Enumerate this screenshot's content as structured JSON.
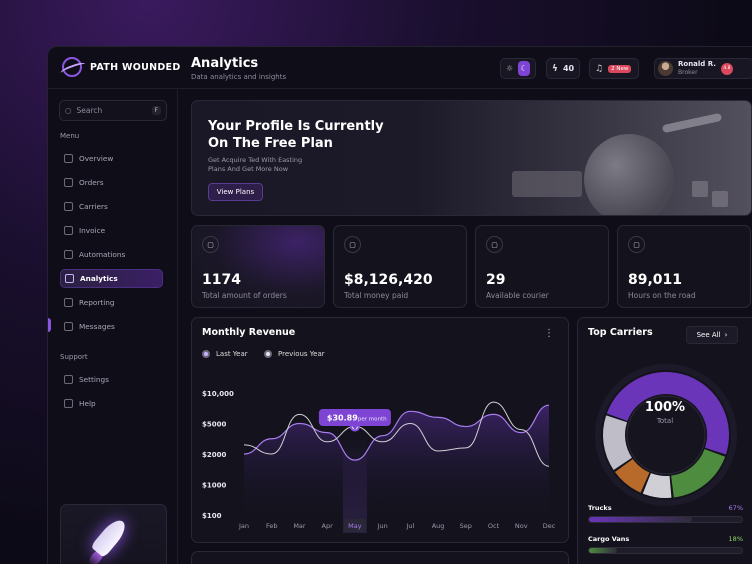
{
  "brand": {
    "name": "PATH WOUNDED"
  },
  "header": {
    "title": "Analytics",
    "subtitle": "Data analytics and insights",
    "energy_count": "40",
    "notifications_badge": "2 New",
    "user": {
      "name": "Ronald R.",
      "role": "Broker",
      "badge": "4.8"
    }
  },
  "sidebar": {
    "search_placeholder": "Search",
    "search_shortcut": "F",
    "menu_label": "Menu",
    "menu_items": [
      {
        "label": "Overview",
        "icon": "overview-icon"
      },
      {
        "label": "Orders",
        "icon": "orders-icon"
      },
      {
        "label": "Carriers",
        "icon": "carriers-icon"
      },
      {
        "label": "Invoice",
        "icon": "invoice-icon"
      },
      {
        "label": "Automations",
        "icon": "automations-icon"
      },
      {
        "label": "Analytics",
        "icon": "analytics-icon",
        "active": true
      },
      {
        "label": "Reporting",
        "icon": "reporting-icon"
      },
      {
        "label": "Messages",
        "icon": "messages-icon"
      }
    ],
    "support_label": "Support",
    "support_items": [
      {
        "label": "Settings",
        "icon": "settings-icon"
      },
      {
        "label": "Help",
        "icon": "help-icon"
      }
    ]
  },
  "banner": {
    "title": "Your Profile Is Currently On The Free Plan",
    "subtitle": "Get Acquire Ted With Easting Plans And Get More Now",
    "button": "View Plans"
  },
  "stats": [
    {
      "value": "1174",
      "label": "Total amount of orders",
      "icon": "wallet-icon"
    },
    {
      "value": "$8,126,420",
      "label": "Total money paid",
      "icon": "receipt-icon"
    },
    {
      "value": "29",
      "label": "Available courier",
      "icon": "courier-icon"
    },
    {
      "value": "89,011",
      "label": "Hours on the road",
      "icon": "clock-icon"
    }
  ],
  "revenue": {
    "title": "Monthly Revenue",
    "legend_last": "Last Year",
    "legend_prev": "Previous Year",
    "tooltip_value": "$30.89",
    "tooltip_unit": "per month"
  },
  "chart_data": {
    "type": "line",
    "title": "Monthly Revenue",
    "categories": [
      "Jan",
      "Feb",
      "Mar",
      "Apr",
      "May",
      "Jun",
      "Jul",
      "Aug",
      "Sep",
      "Oct",
      "Nov",
      "Dec"
    ],
    "y_tick_labels": [
      "$10,000",
      "$5000",
      "$2000",
      "$1000",
      "$100"
    ],
    "ylim": [
      0,
      4
    ],
    "highlight_category": "May",
    "series": [
      {
        "name": "Last Year",
        "values": [
          2.0,
          2.5,
          3.0,
          2.7,
          1.8,
          2.6,
          3.4,
          3.2,
          2.9,
          3.3,
          2.7,
          3.6
        ]
      },
      {
        "name": "Previous Year",
        "values": [
          2.3,
          2.0,
          3.3,
          2.4,
          2.9,
          2.4,
          3.0,
          2.1,
          2.2,
          3.7,
          2.8,
          1.6
        ]
      }
    ],
    "colors": {
      "last_year": "#a77cf0",
      "previous_year": "#d0cfd6"
    }
  },
  "carriers": {
    "title": "Top Carriers",
    "see_all": "See All",
    "donut_value": "100%",
    "donut_label": "Total",
    "segments": [
      {
        "name": "purple",
        "value": 50,
        "color": "#6a35b8"
      },
      {
        "name": "green",
        "value": 18,
        "color": "#4e8d3f"
      },
      {
        "name": "white",
        "value": 8,
        "color": "#d0cfd6"
      },
      {
        "name": "orange",
        "value": 9,
        "color": "#b86a2a"
      },
      {
        "name": "grey",
        "value": 15,
        "color": "#bfbec8"
      }
    ],
    "bars": [
      {
        "label": "Trucks",
        "pct": "67%",
        "value": 0.67,
        "color": "#6a35b8"
      },
      {
        "label": "Cargo Vans",
        "pct": "18%",
        "value": 0.18,
        "color": "#4e8d3f"
      }
    ]
  }
}
